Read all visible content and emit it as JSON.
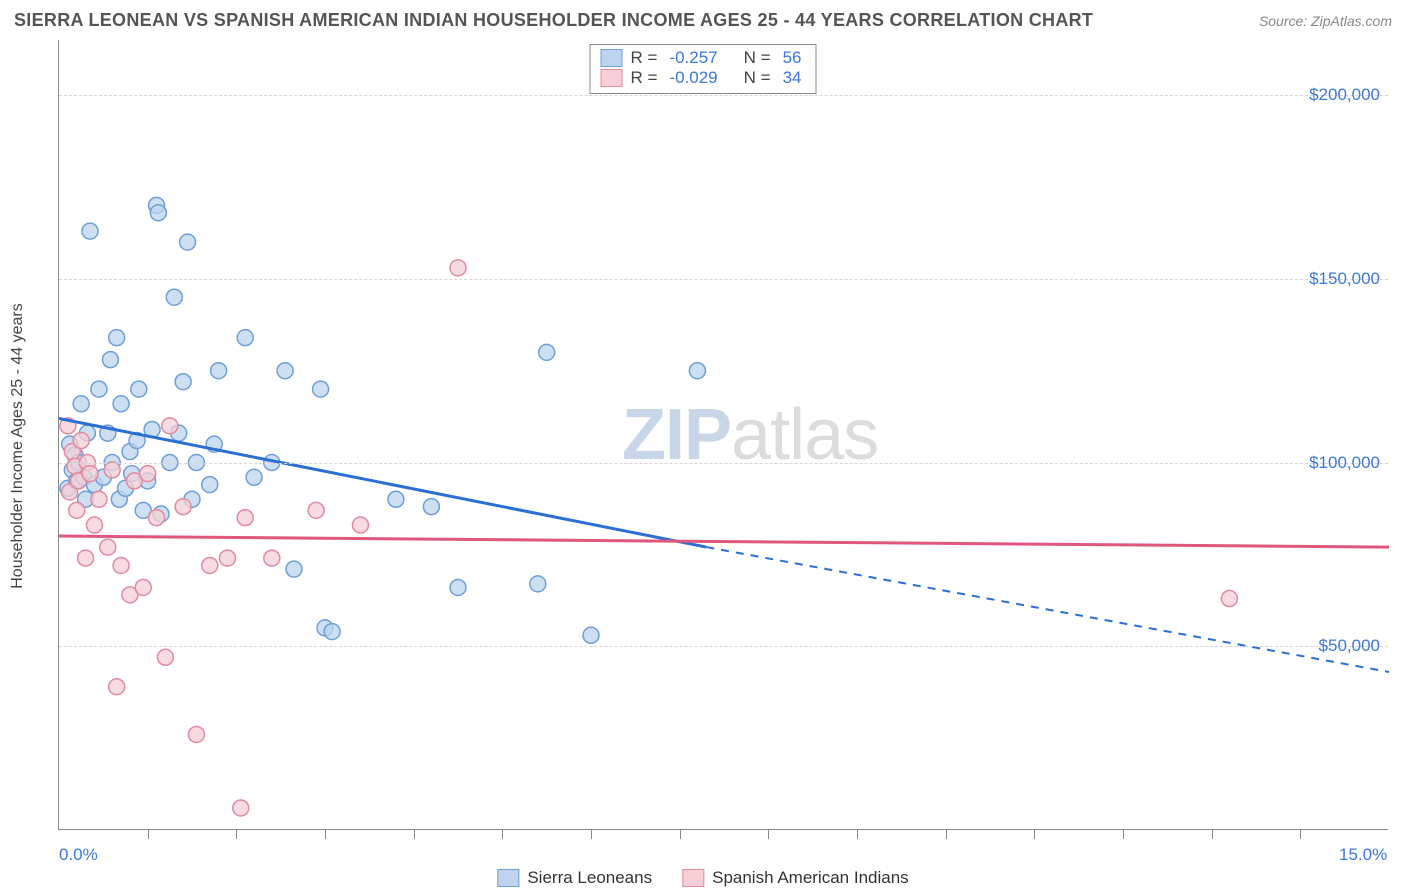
{
  "title": "SIERRA LEONEAN VS SPANISH AMERICAN INDIAN HOUSEHOLDER INCOME AGES 25 - 44 YEARS CORRELATION CHART",
  "source_label": "Source: ZipAtlas.com",
  "watermark_prefix": "ZIP",
  "watermark_suffix": "atlas",
  "chart": {
    "type": "scatter",
    "background_color": "#ffffff",
    "grid_color": "#d6d6d6",
    "axis_color": "#888888",
    "tick_label_color": "#3b78d8",
    "ylabel": "Householder Income Ages 25 - 44 years",
    "ylabel_fontsize": 16,
    "xlim": [
      0,
      15
    ],
    "ylim": [
      0,
      215000
    ],
    "x_ticks": [
      0,
      15
    ],
    "x_tick_labels": [
      "0.0%",
      "15.0%"
    ],
    "x_minor_ticks_pct": [
      1,
      2,
      3,
      4,
      5,
      6,
      7,
      8,
      9,
      10,
      11,
      12,
      13,
      14
    ],
    "y_ticks": [
      50000,
      100000,
      150000,
      200000
    ],
    "y_tick_labels": [
      "$50,000",
      "$100,000",
      "$150,000",
      "$200,000"
    ],
    "marker_radius": 8,
    "series": [
      {
        "key": "sierra_leoneans",
        "label": "Sierra Leoneans",
        "color_fill": "#bcd4ee",
        "color_stroke": "#6f9fd8",
        "trend_color": "#2b6fd4",
        "r": "-0.257",
        "n": "56",
        "trend": {
          "x1": 0,
          "y1": 112000,
          "x2": 7.3,
          "y2": 77000,
          "x_end": 15,
          "y_end": 43000
        },
        "points": [
          [
            0.1,
            93000
          ],
          [
            0.12,
            105000
          ],
          [
            0.15,
            98000
          ],
          [
            0.18,
            102000
          ],
          [
            0.2,
            95000
          ],
          [
            0.22,
            100000
          ],
          [
            0.25,
            116000
          ],
          [
            0.28,
            96000
          ],
          [
            0.3,
            90000
          ],
          [
            0.32,
            108000
          ],
          [
            0.35,
            163000
          ],
          [
            0.4,
            94000
          ],
          [
            0.45,
            120000
          ],
          [
            0.5,
            96000
          ],
          [
            0.55,
            108000
          ],
          [
            0.58,
            128000
          ],
          [
            0.6,
            100000
          ],
          [
            0.65,
            134000
          ],
          [
            0.68,
            90000
          ],
          [
            0.7,
            116000
          ],
          [
            0.75,
            93000
          ],
          [
            0.8,
            103000
          ],
          [
            0.82,
            97000
          ],
          [
            0.88,
            106000
          ],
          [
            0.9,
            120000
          ],
          [
            0.95,
            87000
          ],
          [
            1.0,
            95000
          ],
          [
            1.05,
            109000
          ],
          [
            1.1,
            170000
          ],
          [
            1.12,
            168000
          ],
          [
            1.15,
            86000
          ],
          [
            1.25,
            100000
          ],
          [
            1.3,
            145000
          ],
          [
            1.35,
            108000
          ],
          [
            1.4,
            122000
          ],
          [
            1.45,
            160000
          ],
          [
            1.5,
            90000
          ],
          [
            1.55,
            100000
          ],
          [
            1.7,
            94000
          ],
          [
            1.75,
            105000
          ],
          [
            1.8,
            125000
          ],
          [
            2.1,
            134000
          ],
          [
            2.2,
            96000
          ],
          [
            2.4,
            100000
          ],
          [
            2.55,
            125000
          ],
          [
            2.65,
            71000
          ],
          [
            2.95,
            120000
          ],
          [
            3.0,
            55000
          ],
          [
            3.08,
            54000
          ],
          [
            3.8,
            90000
          ],
          [
            4.2,
            88000
          ],
          [
            4.5,
            66000
          ],
          [
            5.4,
            67000
          ],
          [
            5.5,
            130000
          ],
          [
            6.0,
            53000
          ],
          [
            7.2,
            125000
          ]
        ]
      },
      {
        "key": "spanish_american_indians",
        "label": "Spanish American Indians",
        "color_fill": "#f6cfd7",
        "color_stroke": "#e18aa0",
        "trend_color": "#e0567c",
        "r": "-0.029",
        "n": "34",
        "trend": {
          "x1": 0,
          "y1": 80000,
          "x2": 15,
          "y2": 77000,
          "x_end": 15,
          "y_end": 77000
        },
        "points": [
          [
            0.1,
            110000
          ],
          [
            0.12,
            92000
          ],
          [
            0.15,
            103000
          ],
          [
            0.18,
            99000
          ],
          [
            0.2,
            87000
          ],
          [
            0.22,
            95000
          ],
          [
            0.25,
            106000
          ],
          [
            0.3,
            74000
          ],
          [
            0.32,
            100000
          ],
          [
            0.35,
            97000
          ],
          [
            0.4,
            83000
          ],
          [
            0.45,
            90000
          ],
          [
            0.55,
            77000
          ],
          [
            0.6,
            98000
          ],
          [
            0.65,
            39000
          ],
          [
            0.7,
            72000
          ],
          [
            0.8,
            64000
          ],
          [
            0.85,
            95000
          ],
          [
            0.95,
            66000
          ],
          [
            1.0,
            97000
          ],
          [
            1.1,
            85000
          ],
          [
            1.2,
            47000
          ],
          [
            1.25,
            110000
          ],
          [
            1.4,
            88000
          ],
          [
            1.55,
            26000
          ],
          [
            1.7,
            72000
          ],
          [
            1.9,
            74000
          ],
          [
            2.05,
            6000
          ],
          [
            2.1,
            85000
          ],
          [
            2.4,
            74000
          ],
          [
            2.9,
            87000
          ],
          [
            3.4,
            83000
          ],
          [
            4.5,
            153000
          ],
          [
            13.2,
            63000
          ]
        ]
      }
    ]
  },
  "stat_box": {
    "r_label": "R =",
    "n_label": "N ="
  },
  "legend_fontsize": 17
}
